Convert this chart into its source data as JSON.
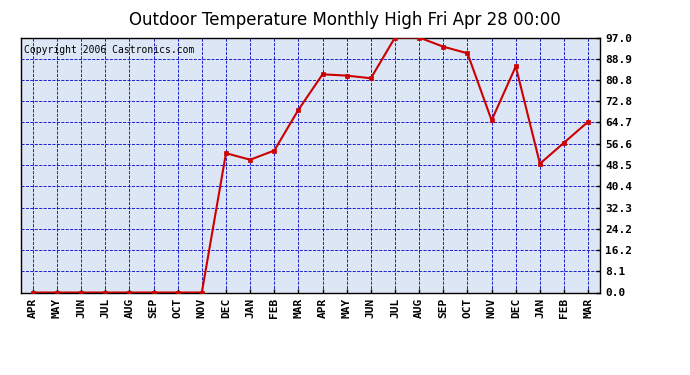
{
  "title": "Outdoor Temperature Monthly High Fri Apr 28 00:00",
  "copyright": "Copyright 2006 Castronics.com",
  "x_labels": [
    "APR",
    "MAY",
    "JUN",
    "JUL",
    "AUG",
    "SEP",
    "OCT",
    "NOV",
    "DEC",
    "JAN",
    "FEB",
    "MAR",
    "APR",
    "MAY",
    "JUN",
    "JUL",
    "AUG",
    "SEP",
    "OCT",
    "NOV",
    "DEC",
    "JAN",
    "FEB",
    "MAR"
  ],
  "y_values": [
    0.0,
    0.0,
    0.0,
    0.0,
    0.0,
    0.0,
    0.0,
    0.0,
    53.0,
    50.5,
    54.0,
    69.5,
    83.0,
    82.5,
    81.5,
    97.0,
    97.0,
    93.5,
    91.0,
    65.5,
    86.0,
    49.0,
    57.0,
    65.0
  ],
  "y_ticks": [
    0.0,
    8.1,
    16.2,
    24.2,
    32.3,
    40.4,
    48.5,
    56.6,
    64.7,
    72.8,
    80.8,
    88.9,
    97.0
  ],
  "line_color": "#cc0000",
  "marker_color": "#cc0000",
  "background_color": "#dce6f5",
  "grid_color": "#0000cc",
  "border_color": "#000000",
  "title_fontsize": 12,
  "copyright_fontsize": 7,
  "tick_fontsize": 8,
  "ylim": [
    0.0,
    97.0
  ],
  "marker_size": 3,
  "linewidth": 1.5
}
